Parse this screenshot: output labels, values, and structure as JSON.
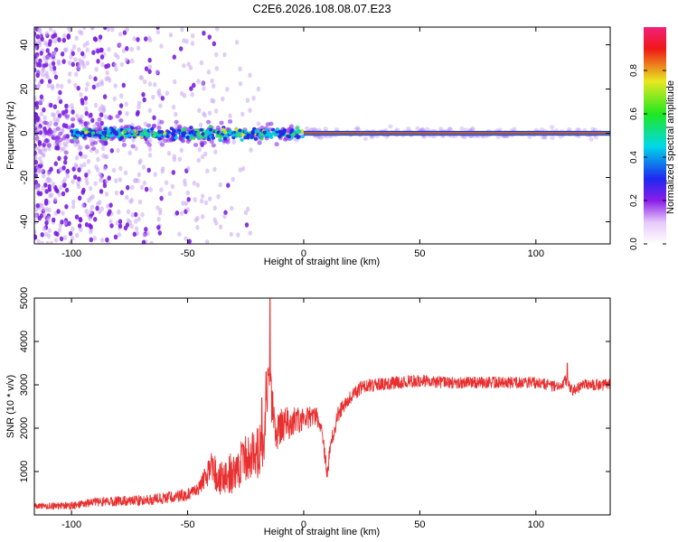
{
  "title": "C2E6.2026.108.08.07.E23",
  "chart_data": [
    {
      "type": "heatmap",
      "title": "C2E6.2026.108.08.07.E23",
      "xlabel": "Height of straight line (km)",
      "ylabel": "Frequency (Hz)",
      "xlim": [
        -116,
        132
      ],
      "ylim": [
        -50,
        48
      ],
      "xticks": [
        -100,
        -50,
        0,
        50,
        100
      ],
      "xtick_labels": [
        "-100",
        "-50",
        "0",
        "50",
        "100"
      ],
      "yticks": [
        -40,
        -20,
        0,
        20,
        40
      ],
      "ytick_labels": [
        "-40",
        "-20",
        "0",
        "20",
        "40"
      ],
      "colorbar": {
        "label": "Normalized spectral amplitude",
        "range": [
          0,
          1
        ],
        "ticks": [
          0.0,
          0.2,
          0.4,
          0.6,
          0.8
        ],
        "tick_labels": [
          "0.0",
          "0.2",
          "0.4",
          "0.6",
          "0.8"
        ]
      },
      "features": {
        "carrier_frequency_hz": 0,
        "carrier_start_km": 0,
        "noisy_region_km": [
          -116,
          -20
        ],
        "spread_region_km": [
          -100,
          -5
        ]
      }
    },
    {
      "type": "line",
      "xlabel": "Height of straight line (km)",
      "ylabel": "SNR (10 * v/v)",
      "xlim": [
        -116,
        132
      ],
      "ylim": [
        0,
        5000
      ],
      "xticks": [
        -100,
        -50,
        0,
        50,
        100
      ],
      "xtick_labels": [
        "-100",
        "-50",
        "0",
        "50",
        "100"
      ],
      "yticks": [
        1000,
        2000,
        3000,
        4000,
        5000
      ],
      "ytick_labels": [
        "1000",
        "2000",
        "3000",
        "4000",
        "5000"
      ],
      "color": "#e83030",
      "envelope": {
        "x": [
          -116,
          -100,
          -90,
          -70,
          -60,
          -50,
          -45,
          -40,
          -35,
          -30,
          -25,
          -20,
          -17,
          -15,
          -12,
          -10,
          -5,
          0,
          5,
          8,
          10,
          12,
          15,
          20,
          25,
          30,
          40,
          50,
          60,
          80,
          100,
          110,
          113,
          116,
          120,
          132
        ],
        "y": [
          200,
          210,
          300,
          330,
          390,
          470,
          620,
          1100,
          800,
          1000,
          1300,
          1400,
          1750,
          3300,
          1650,
          2050,
          2150,
          2200,
          2300,
          2000,
          900,
          1750,
          2350,
          2700,
          2950,
          3000,
          3050,
          3100,
          3050,
          3050,
          3050,
          2950,
          3100,
          2850,
          3000,
          3000
        ]
      },
      "noise": {
        "x": [
          -116,
          -45,
          -40,
          -20,
          -10,
          0,
          20,
          40,
          132
        ],
        "y": [
          70,
          150,
          380,
          600,
          450,
          250,
          160,
          140,
          130
        ]
      },
      "spikes": [
        {
          "x": -14.5,
          "y": 5000
        },
        {
          "x": -16.2,
          "y": 3300
        },
        {
          "x": -18,
          "y": 2700
        },
        {
          "x": 113.5,
          "y": 3500
        }
      ]
    }
  ]
}
